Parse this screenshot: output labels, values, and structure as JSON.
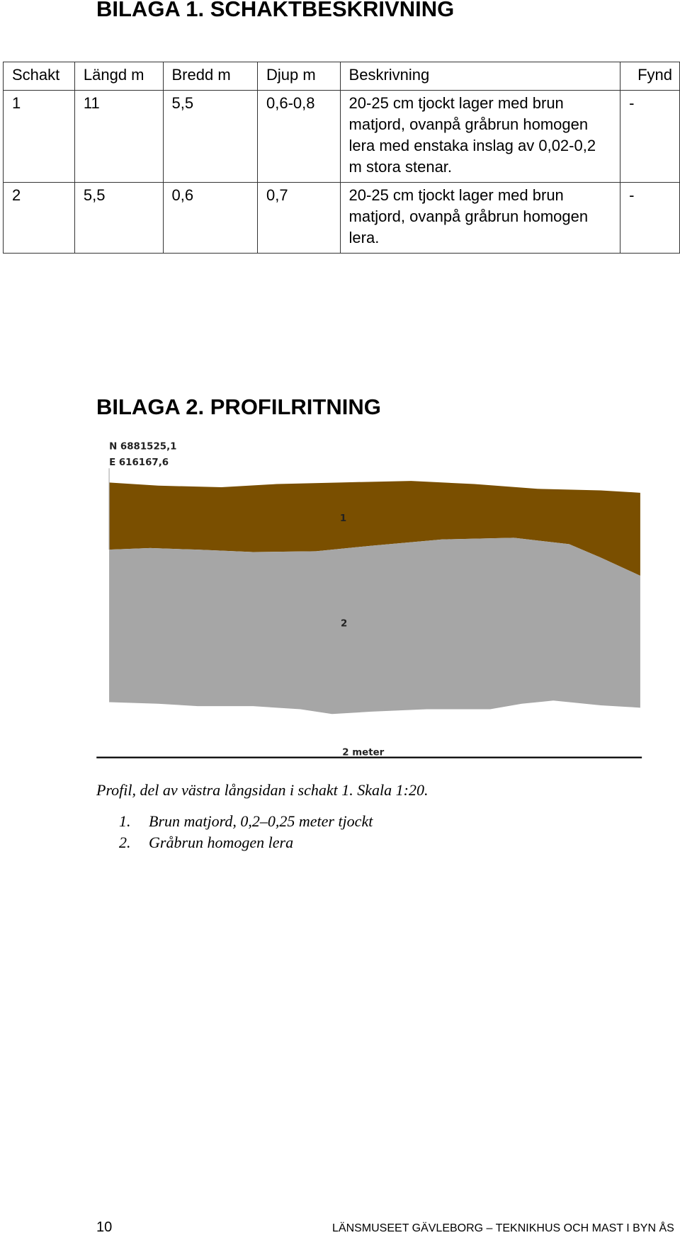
{
  "section1": {
    "title": "BILAGA 1. SCHAKTBESKRIVNING"
  },
  "table": {
    "headers": [
      "Schakt",
      "Längd m",
      "Bredd m",
      "Djup m",
      "Beskrivning",
      "Fynd"
    ],
    "rows": [
      [
        "1",
        "11",
        "5,5",
        "0,6-0,8",
        "20-25 cm tjockt lager med brun matjord, ovanpå gråbrun homogen lera med enstaka inslag av 0,02-0,2 m stora stenar.",
        "-"
      ],
      [
        "2",
        "5,5",
        "0,6",
        "0,7",
        "20-25 cm tjockt lager med brun matjord, ovanpå gråbrun homogen lera.",
        "-"
      ]
    ]
  },
  "section2": {
    "title": "BILAGA 2. PROFILRITNING"
  },
  "figure": {
    "north": "N 6881525,1",
    "east": "E 616167,6",
    "layer_labels": [
      "1",
      "2"
    ],
    "scale_label": "2 meter"
  },
  "caption": "Profil, del av västra långsidan i schakt 1. Skala 1:20.",
  "legend": [
    {
      "number": "1.",
      "text": "Brun matjord, 0,2–0,25 meter tjockt"
    },
    {
      "number": "2.",
      "text": "Gråbrun homogen lera"
    }
  ],
  "footer": {
    "page": "10",
    "text": "LÄNSMUSEET GÄVLEBORG – TEKNIKHUS OCH MAST I BYN ÅS"
  }
}
